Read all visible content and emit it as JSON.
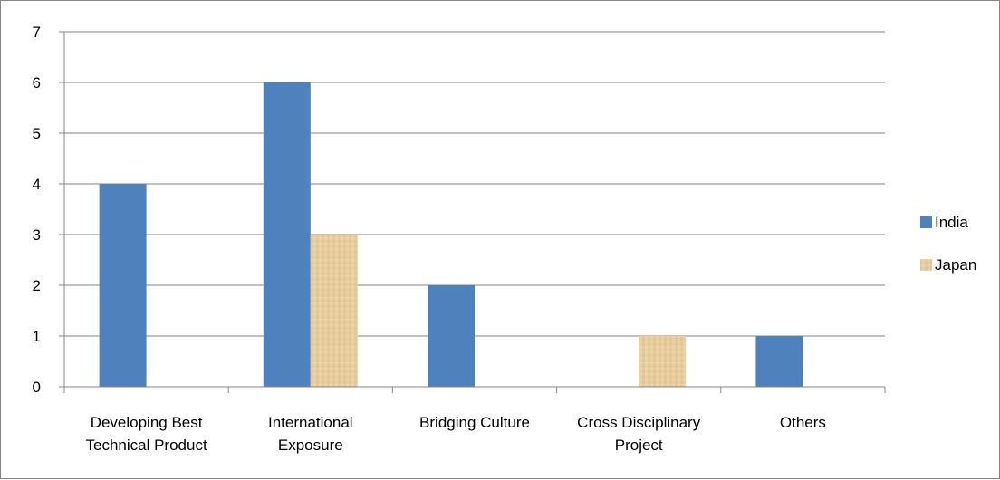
{
  "chart_data": {
    "type": "bar",
    "title": "",
    "xlabel": "",
    "ylabel": "",
    "categories": [
      [
        "Developing Best",
        "Technical Product"
      ],
      [
        "International",
        "Exposure"
      ],
      [
        "Bridging Culture"
      ],
      [
        "Cross Disciplinary",
        "Project"
      ],
      [
        "Others"
      ]
    ],
    "series": [
      {
        "name": "India",
        "values": [
          4,
          6,
          2,
          0,
          1
        ],
        "color": "#4f81bd"
      },
      {
        "name": "Japan",
        "values": [
          0,
          3,
          0,
          1,
          0
        ],
        "color": "#e6cc9a"
      }
    ],
    "ylim": [
      0,
      7
    ],
    "yticks": [
      0,
      1,
      2,
      3,
      4,
      5,
      6,
      7
    ],
    "grid": true,
    "legend": "right"
  }
}
